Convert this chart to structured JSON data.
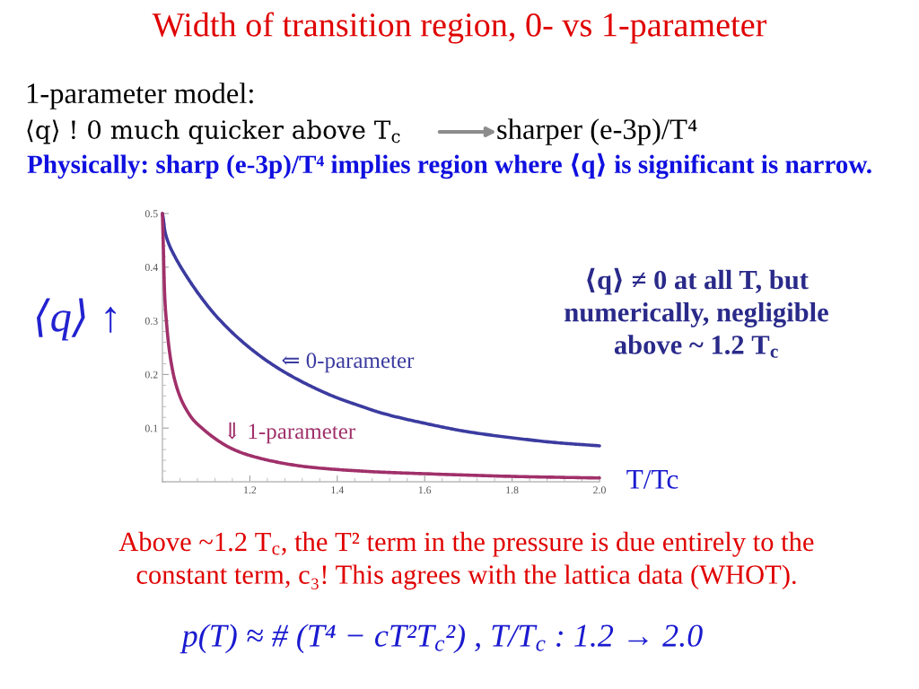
{
  "chart_data": {
    "type": "line",
    "title": "Width of transition region, 0- vs 1-parameter",
    "xlabel": "T/Tc",
    "ylabel": "⟨q⟩ ↑",
    "xlim": [
      1.0,
      2.0
    ],
    "ylim": [
      0,
      0.5
    ],
    "xticks": [
      1.2,
      1.4,
      1.6,
      1.8,
      {
        "value": 2,
        "label": "2.0"
      }
    ],
    "yticks": [
      0.1,
      0.2,
      0.3,
      0.4,
      0.5
    ],
    "series": [
      {
        "name": "⇐ 0-parameter",
        "color": "#3b3ba0",
        "x": [
          1.0,
          1.002,
          1.005,
          1.012,
          1.029,
          1.056,
          1.091,
          1.125,
          1.193,
          1.262,
          1.33,
          1.398,
          1.45,
          1.502,
          1.6,
          1.7,
          1.8,
          1.9,
          2.0
        ],
        "values": [
          0.5,
          0.49,
          0.47,
          0.449,
          0.419,
          0.382,
          0.341,
          0.307,
          0.254,
          0.213,
          0.182,
          0.157,
          0.142,
          0.128,
          0.109,
          0.093,
          0.082,
          0.073,
          0.067
        ]
      },
      {
        "name": "⇓ 1-parameter",
        "color": "#a0306a",
        "x": [
          1.0,
          1.002,
          1.005,
          1.01,
          1.015,
          1.02,
          1.028,
          1.041,
          1.055,
          1.07,
          1.089,
          1.123,
          1.158,
          1.192,
          1.26,
          1.329,
          1.397,
          1.5,
          1.6,
          1.8,
          2.0
        ],
        "values": [
          0.5,
          0.44,
          0.35,
          0.29,
          0.25,
          0.222,
          0.19,
          0.157,
          0.134,
          0.116,
          0.101,
          0.079,
          0.062,
          0.051,
          0.037,
          0.028,
          0.023,
          0.018,
          0.015,
          0.01,
          0.007
        ]
      }
    ],
    "annotations": [
      "1-parameter model:",
      "⟨q⟩ ! 0 much quicker above T$_{c}$",
      "sharper (e-3p)/T⁴",
      "Physically: sharp (e-3p)/T⁴ implies region where ⟨q⟩ is significant is narrow.",
      "⟨q⟩ ≠ 0 at all T, but\nnumerically, negligible\nabove ~ 1.2 T$_{c}$",
      "Above ~1.2 T$_{c}$, the T² term in the pressure is due entirely to the\nconstant term, c₃! This agrees with the lattica data (WHOT).",
      "p(T) ≈ # (T⁴ − cT²T$_{c}$²) , T/T$_{c}$ : 1.2 → 2.0"
    ]
  }
}
